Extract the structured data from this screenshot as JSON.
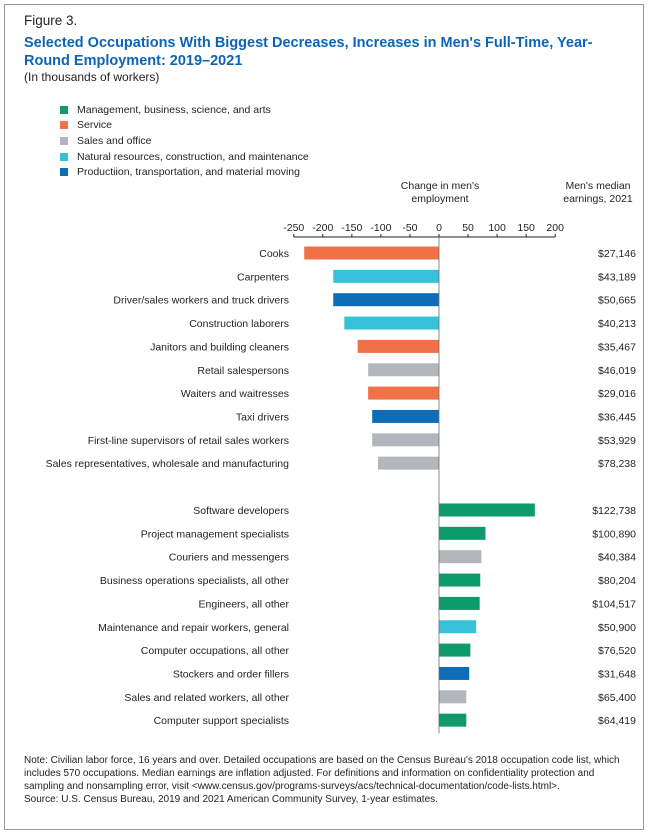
{
  "figure_label": "Figure 3.",
  "title": "Selected Occupations With Biggest Decreases, Increases in Men's Full-Time, Year-Round Employment: 2019–2021",
  "subtitle": "(In thousands of workers)",
  "column_heads": {
    "change": "Change in men's employment",
    "earnings": "Men's median earnings, 2021"
  },
  "notes": {
    "note": "Note: Civilian labor force, 16 years and over. Detailed occupations are based on the Census Bureau's 2018 occupation code list, which includes 570 occupations. Median earnings are inflation adjusted. For definitions and information on confidentiality protection and sampling and nonsampling error, visit <www.census.gov/programs-surveys/acs/technical-documentation/code-lists.html>.",
    "source": "Source: U.S. Census Bureau, 2019 and 2021 American Community Survey, 1-year estimates."
  },
  "chart_data": {
    "type": "bar",
    "orientation": "horizontal",
    "xlim": [
      -250,
      200
    ],
    "xticks": [
      -250,
      -200,
      -150,
      -100,
      -50,
      0,
      50,
      100,
      150,
      200
    ],
    "legend_placement": "top-left",
    "legend": [
      {
        "key": "mgmt",
        "label": "Management, business, science, and arts",
        "color": "#0e9a6b"
      },
      {
        "key": "service",
        "label": "Service",
        "color": "#f07048"
      },
      {
        "key": "sales",
        "label": "Sales and office",
        "color": "#b3b7bd"
      },
      {
        "key": "natural",
        "label": "Natural resources, construction, and maintenance",
        "color": "#36c2d8"
      },
      {
        "key": "production",
        "label": "Productiion, transportation, and material moving",
        "color": "#0f6cb6"
      }
    ],
    "groups": [
      {
        "rows": [
          {
            "label": "Cooks",
            "value": -232,
            "group": "service",
            "earnings": "$27,146"
          },
          {
            "label": "Carpenters",
            "value": -182,
            "group": "natural",
            "earnings": "$43,189"
          },
          {
            "label": "Driver/sales workers and truck drivers",
            "value": -182,
            "group": "production",
            "earnings": "$50,665"
          },
          {
            "label": "Construction laborers",
            "value": -163,
            "group": "natural",
            "earnings": "$40,213"
          },
          {
            "label": "Janitors and building cleaners",
            "value": -140,
            "group": "service",
            "earnings": "$35,467"
          },
          {
            "label": "Retail salespersons",
            "value": -122,
            "group": "sales",
            "earnings": "$46,019"
          },
          {
            "label": "Waiters and waitresses",
            "value": -122,
            "group": "service",
            "earnings": "$29,016"
          },
          {
            "label": "Taxi drivers",
            "value": -115,
            "group": "production",
            "earnings": "$36,445"
          },
          {
            "label": "First-line supervisors of retail sales workers",
            "value": -115,
            "group": "sales",
            "earnings": "$53,929"
          },
          {
            "label": "Sales representatives, wholesale and manufacturing",
            "value": -105,
            "group": "sales",
            "earnings": "$78,238"
          }
        ]
      },
      {
        "rows": [
          {
            "label": "Software developers",
            "value": 165,
            "group": "mgmt",
            "earnings": "$122,738"
          },
          {
            "label": "Project management specialists",
            "value": 80,
            "group": "mgmt",
            "earnings": "$100,890"
          },
          {
            "label": "Couriers and messengers",
            "value": 73,
            "group": "sales",
            "earnings": "$40,384"
          },
          {
            "label": "Business operations specialists, all other",
            "value": 71,
            "group": "mgmt",
            "earnings": "$80,204"
          },
          {
            "label": "Engineers, all other",
            "value": 70,
            "group": "mgmt",
            "earnings": "$104,517"
          },
          {
            "label": "Maintenance and repair workers, general",
            "value": 64,
            "group": "natural",
            "earnings": "$50,900"
          },
          {
            "label": "Computer occupations, all other",
            "value": 54,
            "group": "mgmt",
            "earnings": "$76,520"
          },
          {
            "label": "Stockers and order fillers",
            "value": 52,
            "group": "production",
            "earnings": "$31,648"
          },
          {
            "label": "Sales and related workers, all other",
            "value": 47,
            "group": "sales",
            "earnings": "$65,400"
          },
          {
            "label": "Computer support specialists",
            "value": 47,
            "group": "mgmt",
            "earnings": "$64,419"
          }
        ]
      }
    ]
  }
}
